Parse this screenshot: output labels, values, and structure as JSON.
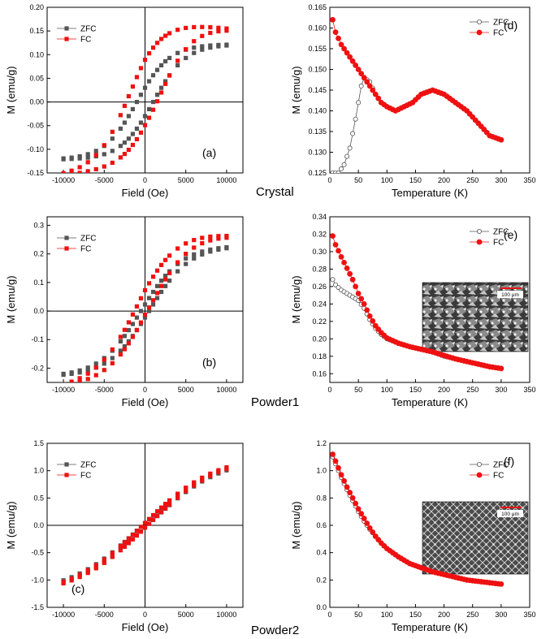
{
  "colors": {
    "zfc": "#555555",
    "fc": "#ee1111",
    "axis": "#000000"
  },
  "sample_labels": [
    "Crystal",
    "Powder1",
    "Powder2"
  ],
  "chart_data": [
    {
      "panel": "(a)",
      "type": "scatter",
      "loop": true,
      "xlabel": "Field (Oe)",
      "ylabel": "M (emu/g)",
      "xlim": [
        -12000,
        12000
      ],
      "ylim": [
        -0.15,
        0.2
      ],
      "xticks": [
        -10000,
        -5000,
        0,
        5000,
        10000
      ],
      "yticks": [
        -0.15,
        -0.1,
        -0.05,
        0.0,
        0.05,
        0.1,
        0.15,
        0.2
      ],
      "ytick_labels": [
        "-0.15",
        "-0.10",
        "-0.05",
        "0.00",
        "0.05",
        "0.10",
        "0.15",
        "0.20"
      ],
      "legend": [
        "ZFC",
        "FC"
      ],
      "legend_position": "top-left",
      "label_position": "bottom-right",
      "series": [
        {
          "name": "ZFC",
          "marker": "square-filled",
          "Ms": 0.122,
          "Mr": 0.035,
          "Hc": 1000,
          "H0": 4000
        },
        {
          "name": "FC",
          "marker": "square-filled",
          "Ms": 0.156,
          "Mr": 0.08,
          "Hc": -1900,
          "H0": 4000,
          "shift": 0.02
        }
      ]
    },
    {
      "panel": "(d)",
      "type": "scatter",
      "xlabel": "Temperature (K)",
      "ylabel": "M (emu/g)",
      "xlim": [
        0,
        350
      ],
      "ylim": [
        0.125,
        0.165
      ],
      "xticks": [
        0,
        50,
        100,
        150,
        200,
        250,
        300,
        350
      ],
      "yticks": [
        0.125,
        0.13,
        0.135,
        0.14,
        0.145,
        0.15,
        0.155,
        0.16,
        0.165
      ],
      "ytick_labels": [
        "0.125",
        "0.130",
        "0.135",
        "0.140",
        "0.145",
        "0.150",
        "0.155",
        "0.160",
        "0.165"
      ],
      "legend": [
        "ZFC",
        "FC"
      ],
      "legend_position": "top-right",
      "label_position": "top-right",
      "series": [
        {
          "name": "ZFC",
          "marker": "circle-open",
          "points": [
            [
              5,
              0.125
            ],
            [
              15,
              0.125
            ],
            [
              25,
              0.127
            ],
            [
              35,
              0.131
            ],
            [
              45,
              0.138
            ],
            [
              55,
              0.146
            ],
            [
              60,
              0.148
            ],
            [
              70,
              0.147
            ],
            [
              80,
              0.144
            ],
            [
              90,
              0.142
            ],
            [
              100,
              0.141
            ],
            [
              115,
              0.14
            ],
            [
              130,
              0.141
            ],
            [
              145,
              0.142
            ],
            [
              160,
              0.144
            ],
            [
              180,
              0.145
            ],
            [
              200,
              0.144
            ],
            [
              220,
              0.142
            ],
            [
              240,
              0.14
            ],
            [
              260,
              0.137
            ],
            [
              280,
              0.134
            ],
            [
              300,
              0.133
            ]
          ]
        },
        {
          "name": "FC",
          "marker": "circle-filled",
          "points": [
            [
              5,
              0.162
            ],
            [
              10,
              0.159
            ],
            [
              20,
              0.156
            ],
            [
              30,
              0.154
            ],
            [
              40,
              0.152
            ],
            [
              50,
              0.15
            ],
            [
              60,
              0.148
            ],
            [
              70,
              0.146
            ],
            [
              80,
              0.144
            ],
            [
              90,
              0.142
            ],
            [
              100,
              0.141
            ],
            [
              115,
              0.14
            ],
            [
              130,
              0.141
            ],
            [
              145,
              0.142
            ],
            [
              160,
              0.144
            ],
            [
              180,
              0.145
            ],
            [
              200,
              0.144
            ],
            [
              220,
              0.142
            ],
            [
              240,
              0.14
            ],
            [
              260,
              0.137
            ],
            [
              280,
              0.134
            ],
            [
              300,
              0.133
            ]
          ]
        }
      ]
    },
    {
      "panel": "(b)",
      "type": "scatter",
      "loop": true,
      "xlabel": "Field (Oe)",
      "ylabel": "M (emu/g)",
      "xlim": [
        -12000,
        12000
      ],
      "ylim": [
        -0.25,
        0.33
      ],
      "xticks": [
        -10000,
        -5000,
        0,
        5000,
        10000
      ],
      "yticks": [
        -0.2,
        -0.1,
        0.0,
        0.1,
        0.2,
        0.3
      ],
      "ytick_labels": [
        "-0.2",
        "-0.1",
        "0.0",
        "0.1",
        "0.2",
        "0.3"
      ],
      "legend": [
        "ZFC",
        "FC"
      ],
      "legend_position": "top-left",
      "label_position": "bottom-right",
      "series": [
        {
          "name": "ZFC",
          "marker": "square-filled",
          "Ms": 0.23,
          "Mr": 0.03,
          "Hc": 500,
          "H0": 5000
        },
        {
          "name": "FC",
          "marker": "square-filled",
          "Ms": 0.27,
          "Mr": 0.07,
          "Hc": -800,
          "H0": 5000,
          "shift": 0.03
        }
      ]
    },
    {
      "panel": "(e)",
      "type": "scatter",
      "xlabel": "Temperature (K)",
      "ylabel": "M (emu/g)",
      "xlim": [
        0,
        350
      ],
      "ylim": [
        0.15,
        0.34
      ],
      "xticks": [
        0,
        50,
        100,
        150,
        200,
        250,
        300,
        350
      ],
      "yticks": [
        0.16,
        0.18,
        0.2,
        0.22,
        0.24,
        0.26,
        0.28,
        0.3,
        0.32,
        0.34
      ],
      "ytick_labels": [
        "0.16",
        "0.18",
        "0.20",
        "0.22",
        "0.24",
        "0.26",
        "0.28",
        "0.30",
        "0.32",
        "0.34"
      ],
      "legend": [
        "ZFC",
        "FC"
      ],
      "legend_position": "top-right",
      "label_position": "top-right",
      "inset": {
        "type": "sem-image",
        "scale_bar": "100 μm"
      },
      "series": [
        {
          "name": "ZFC",
          "marker": "circle-open",
          "points": [
            [
              5,
              0.268
            ],
            [
              10,
              0.262
            ],
            [
              20,
              0.256
            ],
            [
              30,
              0.252
            ],
            [
              40,
              0.248
            ],
            [
              50,
              0.244
            ],
            [
              60,
              0.235
            ],
            [
              70,
              0.222
            ],
            [
              80,
              0.212
            ],
            [
              90,
              0.205
            ],
            [
              100,
              0.2
            ],
            [
              120,
              0.195
            ],
            [
              140,
              0.191
            ],
            [
              160,
              0.188
            ],
            [
              180,
              0.185
            ],
            [
              200,
              0.18
            ],
            [
              220,
              0.177
            ],
            [
              240,
              0.174
            ],
            [
              260,
              0.171
            ],
            [
              280,
              0.168
            ],
            [
              300,
              0.166
            ]
          ]
        },
        {
          "name": "FC",
          "marker": "circle-filled",
          "points": [
            [
              5,
              0.318
            ],
            [
              10,
              0.308
            ],
            [
              20,
              0.294
            ],
            [
              30,
              0.281
            ],
            [
              40,
              0.268
            ],
            [
              50,
              0.252
            ],
            [
              60,
              0.24
            ],
            [
              65,
              0.233
            ],
            [
              70,
              0.226
            ],
            [
              80,
              0.215
            ],
            [
              90,
              0.207
            ],
            [
              100,
              0.201
            ],
            [
              120,
              0.195
            ],
            [
              140,
              0.191
            ],
            [
              160,
              0.188
            ],
            [
              180,
              0.185
            ],
            [
              200,
              0.181
            ],
            [
              220,
              0.177
            ],
            [
              240,
              0.174
            ],
            [
              260,
              0.171
            ],
            [
              280,
              0.168
            ],
            [
              300,
              0.166
            ]
          ]
        }
      ]
    },
    {
      "panel": "(c)",
      "type": "scatter",
      "loop": true,
      "xlabel": "Field (Oe)",
      "ylabel": "M (emu/g)",
      "xlim": [
        -12000,
        12000
      ],
      "ylim": [
        -1.5,
        1.5
      ],
      "xticks": [
        -10000,
        -5000,
        0,
        5000,
        10000
      ],
      "yticks": [
        -1.5,
        -1.0,
        -0.5,
        0.0,
        0.5,
        1.0,
        1.5
      ],
      "ytick_labels": [
        "-1.5",
        "-1.0",
        "-0.5",
        "0.0",
        "0.5",
        "1.0",
        "1.5"
      ],
      "legend": [
        "ZFC",
        "FC"
      ],
      "legend_position": "top-left",
      "label_position": "bottom-left",
      "series": [
        {
          "name": "ZFC",
          "marker": "square-filled",
          "Ms": 1.27,
          "Mr": 0.05,
          "Hc": 300,
          "H0": 9000
        },
        {
          "name": "FC",
          "marker": "square-filled",
          "Ms": 1.3,
          "Mr": 0.06,
          "Hc": 300,
          "H0": 9000
        }
      ]
    },
    {
      "panel": "(f)",
      "type": "scatter",
      "xlabel": "Temperature (K)",
      "ylabel": "M (emu/g)",
      "xlim": [
        0,
        350
      ],
      "ylim": [
        0.0,
        1.2
      ],
      "xticks": [
        0,
        50,
        100,
        150,
        200,
        250,
        300,
        350
      ],
      "yticks": [
        0.0,
        0.2,
        0.4,
        0.6,
        0.8,
        1.0,
        1.2
      ],
      "ytick_labels": [
        "0.0",
        "0.2",
        "0.4",
        "0.6",
        "0.8",
        "1.0",
        "1.2"
      ],
      "legend": [
        "ZFC",
        "FC"
      ],
      "legend_position": "top-right",
      "label_position": "top-right",
      "inset": {
        "type": "sem-image",
        "scale_bar": "100 μm"
      },
      "series": [
        {
          "name": "ZFC",
          "marker": "circle-open",
          "points": [
            [
              5,
              1.1
            ],
            [
              10,
              1.05
            ],
            [
              20,
              0.95
            ],
            [
              30,
              0.86
            ],
            [
              40,
              0.78
            ],
            [
              50,
              0.7
            ],
            [
              60,
              0.63
            ],
            [
              70,
              0.57
            ],
            [
              80,
              0.52
            ],
            [
              90,
              0.47
            ],
            [
              100,
              0.43
            ],
            [
              120,
              0.37
            ],
            [
              140,
              0.32
            ],
            [
              160,
              0.29
            ],
            [
              180,
              0.26
            ],
            [
              200,
              0.24
            ],
            [
              220,
              0.22
            ],
            [
              240,
              0.2
            ],
            [
              260,
              0.19
            ],
            [
              280,
              0.18
            ],
            [
              300,
              0.17
            ]
          ]
        },
        {
          "name": "FC",
          "marker": "circle-filled",
          "points": [
            [
              5,
              1.12
            ],
            [
              10,
              1.07
            ],
            [
              20,
              0.97
            ],
            [
              30,
              0.88
            ],
            [
              40,
              0.8
            ],
            [
              50,
              0.72
            ],
            [
              60,
              0.65
            ],
            [
              70,
              0.58
            ],
            [
              80,
              0.52
            ],
            [
              90,
              0.47
            ],
            [
              100,
              0.43
            ],
            [
              120,
              0.37
            ],
            [
              140,
              0.32
            ],
            [
              160,
              0.29
            ],
            [
              180,
              0.26
            ],
            [
              200,
              0.24
            ],
            [
              220,
              0.22
            ],
            [
              240,
              0.2
            ],
            [
              260,
              0.19
            ],
            [
              280,
              0.18
            ],
            [
              300,
              0.17
            ]
          ]
        }
      ]
    }
  ]
}
